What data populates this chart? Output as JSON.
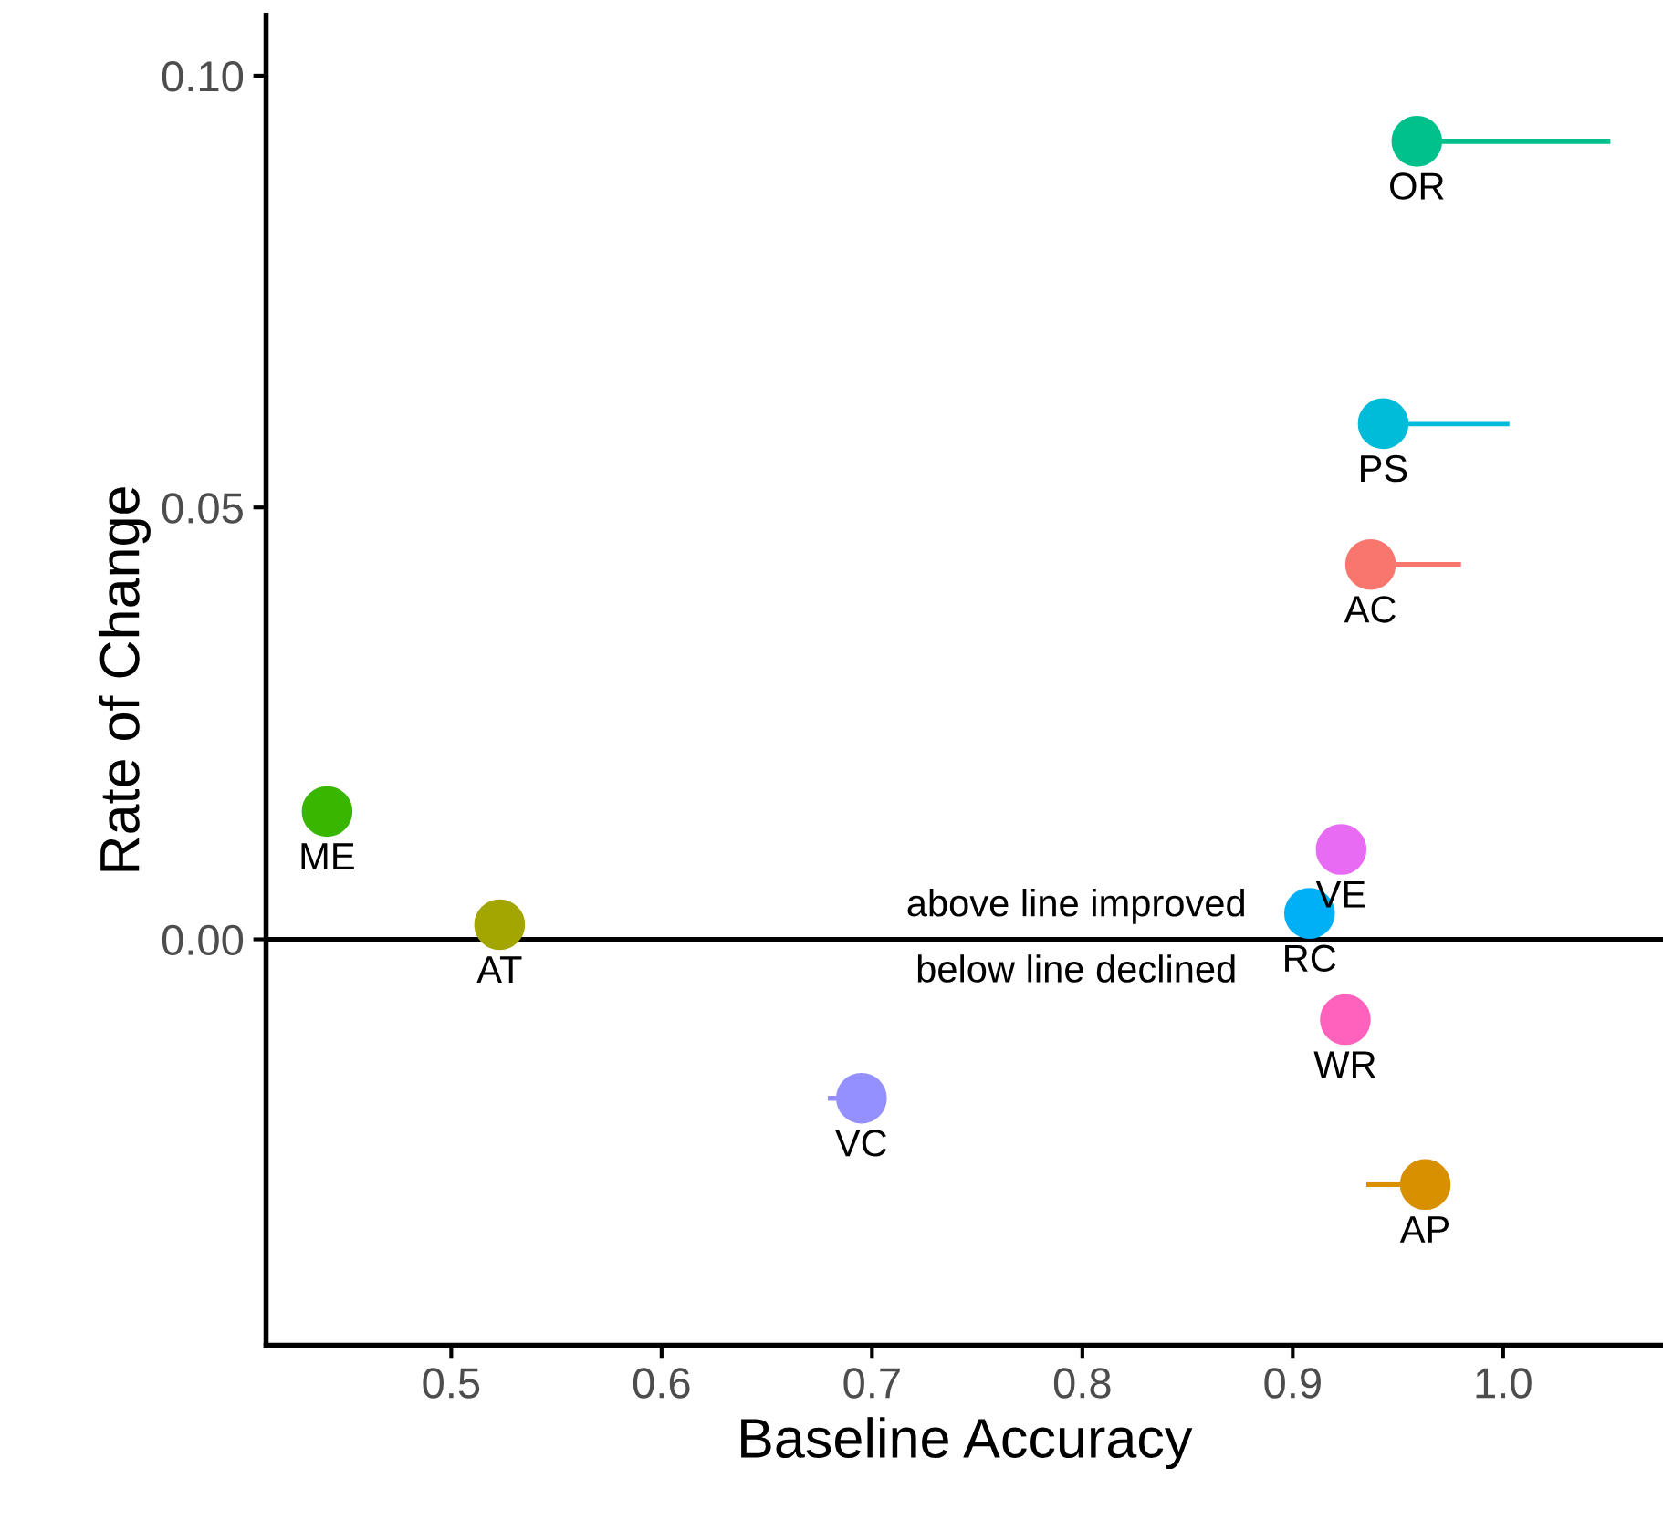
{
  "chart_data": {
    "type": "scatter",
    "xlabel": "Baseline Accuracy",
    "ylabel": "Rate of Change",
    "xlim": [
      0.412,
      1.076
    ],
    "ylim": [
      -0.047,
      0.107
    ],
    "xticks": [
      {
        "value": 0.5,
        "label": "0.5"
      },
      {
        "value": 0.6,
        "label": "0.6"
      },
      {
        "value": 0.7,
        "label": "0.7"
      },
      {
        "value": 0.8,
        "label": "0.8"
      },
      {
        "value": 0.9,
        "label": "0.9"
      },
      {
        "value": 1.0,
        "label": "1.0"
      }
    ],
    "yticks": [
      {
        "value": 0.0,
        "label": "0.00"
      },
      {
        "value": 0.05,
        "label": "0.05"
      },
      {
        "value": 0.1,
        "label": "0.10"
      }
    ],
    "grid": false,
    "legend": false,
    "marker": "circle",
    "ref_lines": [
      {
        "axis": "y",
        "value": 0,
        "color": "#000000"
      }
    ],
    "annotations": [
      "above line improved",
      "below line declined"
    ],
    "series": [
      {
        "name": "OR",
        "color": "#00c08b",
        "x": [
          0.959
        ],
        "values": [
          0.0924
        ],
        "xerrors": [
          [
            0.959,
            1.051
          ]
        ]
      },
      {
        "name": "PS",
        "color": "#00bcd8",
        "x": [
          0.943
        ],
        "values": [
          0.0597
        ],
        "xerrors": [
          [
            0.943,
            1.003
          ]
        ]
      },
      {
        "name": "AC",
        "color": "#f8766d",
        "x": [
          0.937
        ],
        "values": [
          0.0434
        ],
        "xerrors": [
          [
            0.937,
            0.98
          ]
        ]
      },
      {
        "name": "ME",
        "color": "#39b600",
        "x": [
          0.441
        ],
        "values": [
          0.0148
        ]
      },
      {
        "name": "AT",
        "color": "#a3a500",
        "x": [
          0.523
        ],
        "values": [
          0.0017
        ]
      },
      {
        "name": "VE",
        "color": "#e76bf3",
        "x": [
          0.923
        ],
        "values": [
          0.0104
        ]
      },
      {
        "name": "RC",
        "color": "#00b0f6",
        "x": [
          0.908
        ],
        "values": [
          0.003
        ]
      },
      {
        "name": "WR",
        "color": "#ff62bc",
        "x": [
          0.925
        ],
        "values": [
          -0.0093
        ]
      },
      {
        "name": "VC",
        "color": "#9590ff",
        "x": [
          0.695
        ],
        "values": [
          -0.0184
        ],
        "xerrors": [
          [
            0.679,
            0.695
          ]
        ]
      },
      {
        "name": "AP",
        "color": "#d89000",
        "x": [
          0.963
        ],
        "values": [
          -0.0284
        ],
        "xerrors": [
          [
            0.935,
            0.963
          ]
        ]
      }
    ]
  }
}
